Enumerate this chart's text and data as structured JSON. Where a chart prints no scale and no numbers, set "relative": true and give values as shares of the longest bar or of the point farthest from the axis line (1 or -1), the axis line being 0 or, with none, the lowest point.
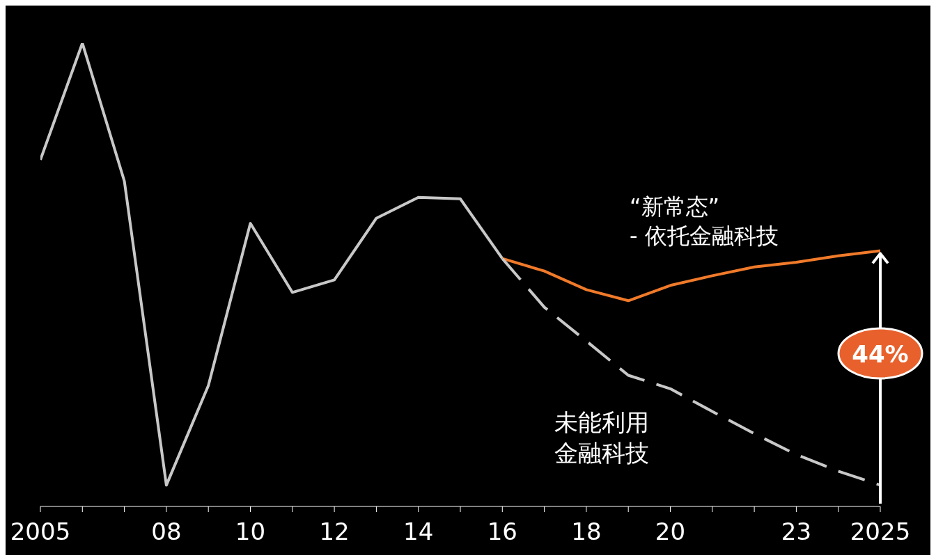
{
  "chart_data": {
    "type": "line",
    "relative": true,
    "categories": [
      "2005",
      null,
      null,
      "08",
      null,
      "10",
      null,
      "12",
      null,
      "14",
      null,
      "16",
      null,
      "18",
      null,
      "20",
      null,
      null,
      "23",
      null,
      "2025"
    ],
    "series": [
      {
        "color": "#c8c8c8",
        "line_style": "solid",
        "values": [
          0.748,
          1,
          0.702,
          0.046,
          0.261,
          0.611,
          0.462,
          0.489,
          0.622,
          0.667,
          0.664,
          0.535,
          null,
          null,
          null,
          null,
          null,
          null,
          null,
          null,
          null
        ]
      },
      {
        "color": "#f07a2a",
        "line_style": "solid",
        "values": [
          null,
          null,
          null,
          null,
          null,
          null,
          null,
          null,
          null,
          null,
          null,
          0.535,
          0.508,
          0.468,
          0.444,
          0.477,
          0.498,
          0.517,
          0.527,
          0.541,
          0.552
        ]
      },
      {
        "color": "#c8c8c8",
        "line_style": "dashed",
        "values": [
          null,
          null,
          null,
          null,
          null,
          null,
          null,
          null,
          null,
          null,
          null,
          0.535,
          0.43,
          0.357,
          0.283,
          0.254,
          0.205,
          0.157,
          0.112,
          0.076,
          0.046
        ]
      }
    ],
    "annotations": [
      "“新常态”",
      "- 依托金融科技",
      "未能利用",
      "金融科技",
      "44%"
    ],
    "grid": false,
    "legend": false,
    "marker": "none"
  }
}
